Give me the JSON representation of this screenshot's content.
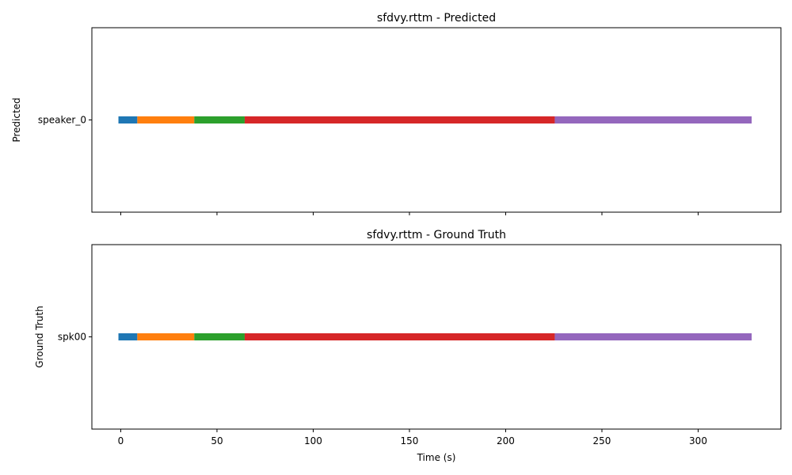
{
  "chart_data": [
    {
      "type": "bar",
      "title": "sfdvy.rttm - Predicted",
      "ylabel": "Predicted",
      "xlabel": "",
      "xlim": [
        -15,
        343
      ],
      "show_x_tick_labels": false,
      "xticks": [
        0,
        50,
        100,
        150,
        200,
        250,
        300
      ],
      "speakers": [
        "speaker_0"
      ],
      "segments": [
        {
          "speaker": "speaker_0",
          "start": -1.2,
          "end": 8.6,
          "color": "#1f77b4"
        },
        {
          "speaker": "speaker_0",
          "start": 8.6,
          "end": 38.2,
          "color": "#ff7f0e"
        },
        {
          "speaker": "speaker_0",
          "start": 38.2,
          "end": 64.4,
          "color": "#2ca02c"
        },
        {
          "speaker": "speaker_0",
          "start": 64.4,
          "end": 225.5,
          "color": "#d62728"
        },
        {
          "speaker": "speaker_0",
          "start": 225.5,
          "end": 327.8,
          "color": "#9467bd"
        }
      ]
    },
    {
      "type": "bar",
      "title": "sfdvy.rttm - Ground Truth",
      "ylabel": "Ground Truth",
      "xlabel": "Time (s)",
      "xlim": [
        -15,
        343
      ],
      "show_x_tick_labels": true,
      "xticks": [
        0,
        50,
        100,
        150,
        200,
        250,
        300
      ],
      "speakers": [
        "spk00"
      ],
      "segments": [
        {
          "speaker": "spk00",
          "start": -1.2,
          "end": 8.6,
          "color": "#1f77b4"
        },
        {
          "speaker": "spk00",
          "start": 8.6,
          "end": 38.2,
          "color": "#ff7f0e"
        },
        {
          "speaker": "spk00",
          "start": 38.2,
          "end": 64.4,
          "color": "#2ca02c"
        },
        {
          "speaker": "spk00",
          "start": 64.4,
          "end": 225.5,
          "color": "#d62728"
        },
        {
          "speaker": "spk00",
          "start": 225.5,
          "end": 327.8,
          "color": "#9467bd"
        }
      ]
    }
  ]
}
